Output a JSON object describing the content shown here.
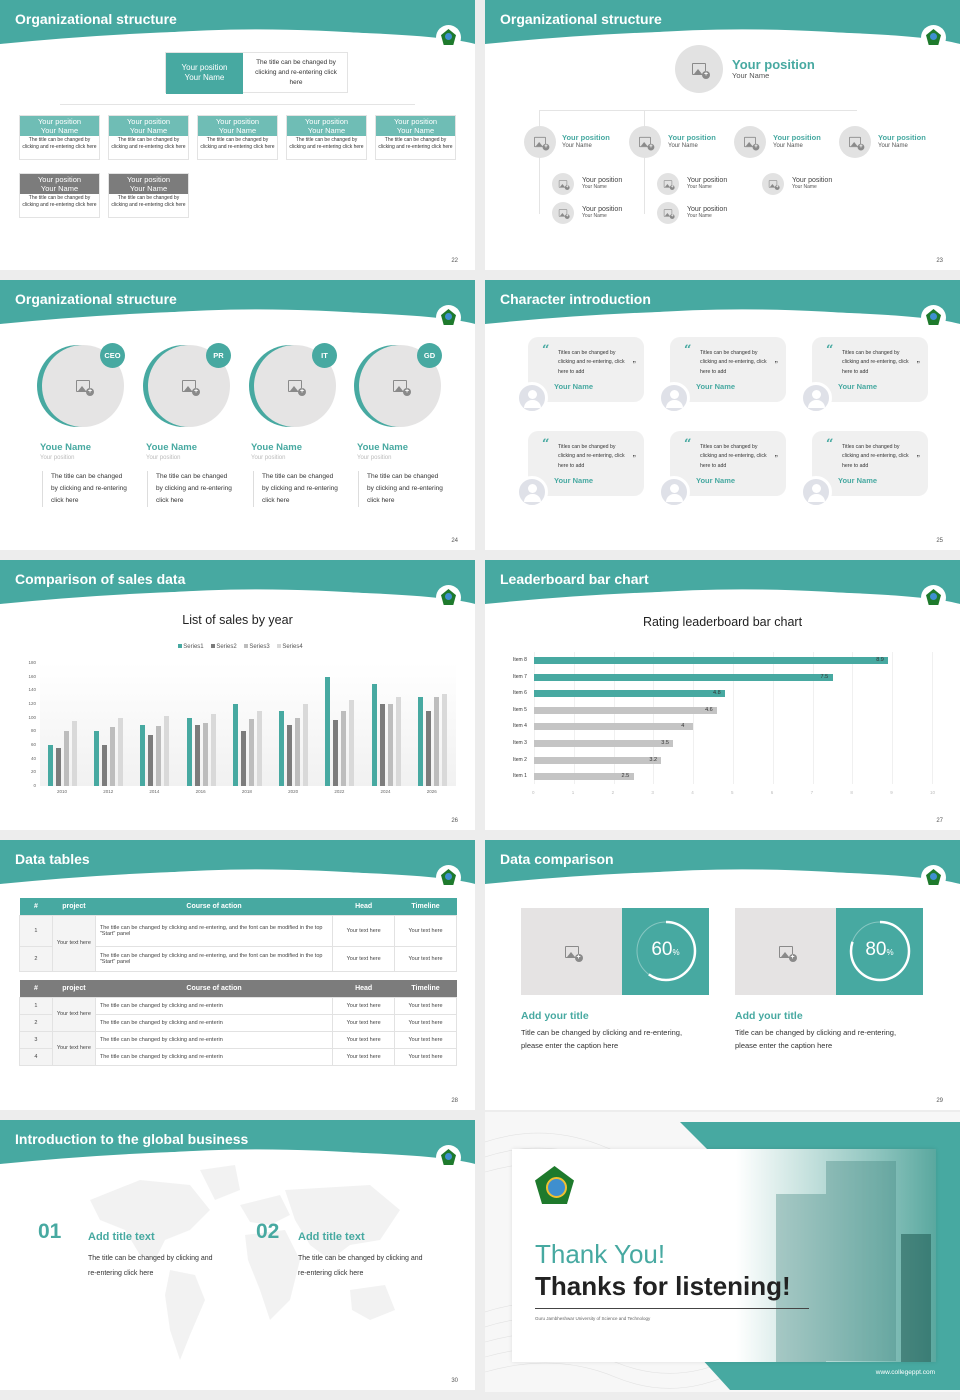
{
  "theme": {
    "accent": "#47a9a1",
    "accent_light": "#6fbdb5",
    "gray": "#7c7c7c",
    "light_gray": "#bdbdbd",
    "lighter_gray": "#d9d9d9"
  },
  "slides": [
    {
      "title": "Organizational structure",
      "page": "22",
      "top": {
        "position": "Your position",
        "name": "Your Name",
        "desc": "The title can be changed by clicking and re-entering click here"
      },
      "row1": [
        {
          "position": "Your position",
          "name": "Your Name",
          "desc": "The title can be changed by clicking and re-entering click here"
        },
        {
          "position": "Your position",
          "name": "Your Name",
          "desc": "The title can be changed by clicking and re-entering click here"
        },
        {
          "position": "Your position",
          "name": "Your Name",
          "desc": "The title can be changed by clicking and re-entering click here"
        },
        {
          "position": "Your position",
          "name": "Your Name",
          "desc": "The title can be changed by clicking and re-entering click here"
        },
        {
          "position": "Your position",
          "name": "Your Name",
          "desc": "The title can be changed by clicking and re-entering click here"
        }
      ],
      "row2": [
        {
          "position": "Your position",
          "name": "Your Name",
          "desc": "The title can be changed by clicking and re-entering click here"
        },
        {
          "position": "Your position",
          "name": "Your Name",
          "desc": "The title can be changed by clicking and re-entering click here"
        }
      ]
    },
    {
      "title": "Organizational structure",
      "page": "23",
      "top": {
        "position": "Your position",
        "name": "Your Name"
      },
      "level2": [
        {
          "position": "Your position",
          "name": "Your Name"
        },
        {
          "position": "Your position",
          "name": "Your Name"
        },
        {
          "position": "Your position",
          "name": "Your Name"
        },
        {
          "position": "Your position",
          "name": "Your Name"
        }
      ],
      "level3": [
        {
          "position": "Your position",
          "name": "Your Name"
        },
        {
          "position": "Your position",
          "name": "Your Name"
        },
        {
          "position": "Your position",
          "name": "Your Name"
        },
        {
          "position": "Your position",
          "name": "Your Name"
        },
        {
          "position": "Your position",
          "name": "Your Name"
        }
      ]
    },
    {
      "title": "Organizational structure",
      "page": "24",
      "members": [
        {
          "badge": "CEO",
          "name": "Youe Name",
          "position": "Your position",
          "desc": "The title can be changed by clicking and re-entering click here"
        },
        {
          "badge": "PR",
          "name": "Youe Name",
          "position": "Your position",
          "desc": "The title can be changed by clicking and re-entering click here"
        },
        {
          "badge": "IT",
          "name": "Youe Name",
          "position": "Your position",
          "desc": "The title can be changed by clicking and re-entering click here"
        },
        {
          "badge": "GD",
          "name": "Youe Name",
          "position": "Your position",
          "desc": "The title can be changed by clicking and re-entering click here"
        }
      ]
    },
    {
      "title": "Character introduction",
      "page": "25",
      "quotes": [
        {
          "text": "Titles can be changed by clicking and re-entering, click here to add",
          "name": "Your Name"
        },
        {
          "text": "Titles can be changed by clicking and re-entering, click here to add",
          "name": "Your Name"
        },
        {
          "text": "Titles can be changed by clicking and re-entering, click here to add",
          "name": "Your Name"
        },
        {
          "text": "Titles can be changed by clicking and re-entering, click here to add",
          "name": "Your Name"
        },
        {
          "text": "Titles can be changed by clicking and re-entering, click here to add",
          "name": "Your Name"
        },
        {
          "text": "Titles can be changed by clicking and re-entering, click here to add",
          "name": "Your Name"
        }
      ],
      "open_quote": "“",
      "close_quote": "”"
    },
    {
      "title": "Comparison of sales data",
      "page": "26",
      "chart_title": "List of sales by year",
      "legend": [
        "Series1",
        "Series2",
        "Series3",
        "Series4"
      ]
    },
    {
      "title": "Leaderboard bar chart",
      "page": "27",
      "chart_title": "Rating leaderboard bar chart"
    },
    {
      "title": "Data tables",
      "page": "28",
      "table1": {
        "headers": [
          "#",
          "project",
          "Course of action",
          "Head",
          "Timeline"
        ],
        "project": "Your text here",
        "rows": [
          {
            "n": "1",
            "action": "The title can be changed by clicking and re-entering, and the font can be modified in the top \"Start\" panel",
            "head": "Your text here",
            "timeline": "Your text here"
          },
          {
            "n": "2",
            "action": "The title can be changed by clicking and re-entering, and the font can be modified in the top \"Start\" panel",
            "head": "Your text here",
            "timeline": "Your text here"
          }
        ]
      },
      "table2": {
        "headers": [
          "#",
          "project",
          "Course of action",
          "Head",
          "Timeline"
        ],
        "project_a": "Your text here",
        "project_b": "Your text here",
        "rows": [
          {
            "n": "1",
            "action": "The title can be changed by clicking and re-enterin",
            "head": "Your text here",
            "timeline": "Your text here"
          },
          {
            "n": "2",
            "action": "The title can be changed by clicking and re-enterin",
            "head": "Your text here",
            "timeline": "Your text here"
          },
          {
            "n": "3",
            "action": "The title can be changed by clicking and re-enterin",
            "head": "Your text here",
            "timeline": "Your text here"
          },
          {
            "n": "4",
            "action": "The title can be changed by clicking and re-enterin",
            "head": "Your text here",
            "timeline": "Your text here"
          }
        ]
      }
    },
    {
      "title": "Data comparison",
      "page": "29",
      "items": [
        {
          "value": "60",
          "unit": "%",
          "title": "Add your title",
          "desc": "Title can be changed by clicking and re-entering, please enter the caption here"
        },
        {
          "value": "80",
          "unit": "%",
          "title": "Add your title",
          "desc": "Title can be changed by clicking and re-entering, please enter the caption here"
        }
      ]
    },
    {
      "title": "Introduction to the global business",
      "page": "30",
      "items": [
        {
          "num": "01",
          "title": "Add title text",
          "desc": "The title can be changed by clicking and re-entering click here"
        },
        {
          "num": "02",
          "title": "Add title text",
          "desc": "The title can be changed by clicking and re-entering click here"
        }
      ]
    },
    {
      "thank_you": "Thank You!",
      "thanks_line": "Thanks for listening!",
      "university": "Guru Jambheshwar University of Science and Technology",
      "url": "www.collegeppt.com"
    }
  ],
  "chart_data": [
    {
      "type": "bar",
      "title": "List of sales by year",
      "categories": [
        "2010",
        "2012",
        "2014",
        "2016",
        "2018",
        "2020",
        "2022",
        "2024",
        "2026"
      ],
      "series": [
        {
          "name": "Series1",
          "color": "#47a9a1",
          "values": [
            60,
            80,
            90,
            100,
            120,
            110,
            160,
            150,
            130
          ]
        },
        {
          "name": "Series2",
          "color": "#7c7c7c",
          "values": [
            55,
            60,
            75,
            90,
            80,
            90,
            96,
            120,
            110
          ]
        },
        {
          "name": "Series3",
          "color": "#bdbdbd",
          "values": [
            80,
            86,
            88,
            92,
            98,
            100,
            110,
            120,
            130
          ]
        },
        {
          "name": "Series4",
          "color": "#d9d9d9",
          "values": [
            95,
            99,
            102,
            105,
            110,
            120,
            126,
            130,
            135
          ]
        }
      ],
      "yticks": [
        "0",
        "20",
        "40",
        "60",
        "80",
        "100",
        "120",
        "140",
        "160",
        "180"
      ],
      "ylim": [
        0,
        180
      ],
      "legend_position": "top",
      "xlabel": "",
      "ylabel": ""
    },
    {
      "type": "bar",
      "orientation": "horizontal",
      "title": "Rating leaderboard bar chart",
      "categories": [
        "Item 8",
        "Item 7",
        "Item 6",
        "Item 5",
        "Item 4",
        "Item 3",
        "Item 2",
        "Item 1"
      ],
      "values": [
        8.9,
        7.5,
        4.8,
        4.6,
        4,
        3.5,
        3.2,
        2.5
      ],
      "labels": [
        "8.9",
        "7.5",
        "4.8",
        "4.6",
        "4",
        "3.5",
        "3.2",
        "2.5"
      ],
      "highlight_top": 3,
      "xticks": [
        "0",
        "1",
        "2",
        "3",
        "4",
        "5",
        "6",
        "7",
        "8",
        "9",
        "10"
      ],
      "xlim": [
        0,
        10
      ]
    }
  ]
}
